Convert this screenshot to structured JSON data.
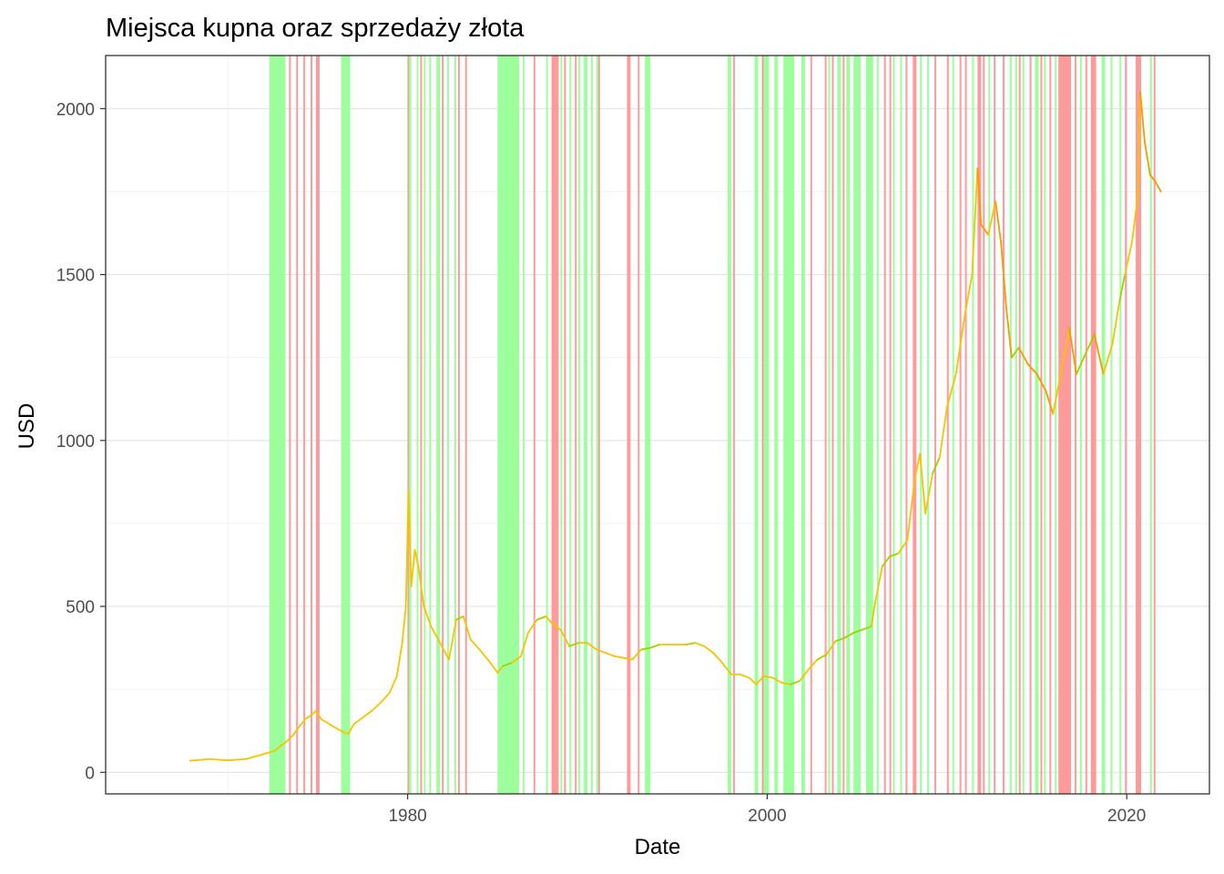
{
  "chart_data": {
    "type": "line",
    "title": "Miejsca kupna oraz sprzedaży złota",
    "xlabel": "Date",
    "ylabel": "USD",
    "x_ticks": [
      "1980",
      "2000",
      "2020"
    ],
    "y_ticks": [
      "0",
      "500",
      "1000",
      "1500",
      "2000"
    ],
    "xlim": [
      1963.2,
      2024.6
    ],
    "ylim": [
      -65,
      2160
    ],
    "grid": true,
    "colors": {
      "price_low": "#f5c400",
      "price_high": "#f59a00",
      "price_trend_up": "#9ad400",
      "buy_band": "#9cff9c",
      "sell_band": "#ff9a9a"
    },
    "series": [
      {
        "x": [
          1967.9,
          1969.0,
          1970.0,
          1971.0,
          1972.0,
          1972.6,
          1973.2,
          1973.6,
          1974.0,
          1974.3,
          1974.7,
          1974.9,
          1975.2,
          1975.8,
          1976.3,
          1976.7,
          1977.0,
          1977.5,
          1978.0,
          1978.5,
          1979.0,
          1979.4,
          1979.7,
          1979.9,
          1980.05,
          1980.2,
          1980.4,
          1980.6,
          1980.9,
          1981.3,
          1981.7,
          1982.3,
          1982.7,
          1983.1,
          1983.5,
          1984.0,
          1984.6,
          1985.0,
          1985.3,
          1985.8,
          1986.3,
          1986.7,
          1987.2,
          1987.7,
          1988.0,
          1988.5,
          1989.0,
          1989.5,
          1990.0,
          1990.5,
          1991.0,
          1991.5,
          1992.0,
          1992.5,
          1993.0,
          1993.5,
          1994.0,
          1994.5,
          1995.0,
          1995.5,
          1996.0,
          1996.5,
          1997.0,
          1997.5,
          1998.0,
          1998.5,
          1999.0,
          1999.4,
          1999.8,
          2000.3,
          2000.8,
          2001.3,
          2001.8,
          2002.3,
          2002.8,
          2003.3,
          2003.8,
          2004.3,
          2004.8,
          2005.3,
          2005.8,
          2006.0,
          2006.4,
          2006.8,
          2007.3,
          2007.8,
          2008.2,
          2008.5,
          2008.8,
          2009.2,
          2009.6,
          2010.0,
          2010.5,
          2011.0,
          2011.4,
          2011.7,
          2011.9,
          2012.3,
          2012.7,
          2013.0,
          2013.3,
          2013.6,
          2014.0,
          2014.5,
          2015.0,
          2015.5,
          2015.9,
          2016.5,
          2016.8,
          2017.2,
          2017.7,
          2018.2,
          2018.7,
          2019.2,
          2019.6,
          2019.9,
          2020.3,
          2020.6,
          2020.75,
          2021.0,
          2021.3,
          2021.6,
          2021.9
        ],
        "y": [
          35,
          40,
          36,
          40,
          55,
          65,
          90,
          110,
          140,
          160,
          175,
          185,
          160,
          140,
          125,
          115,
          145,
          165,
          185,
          210,
          240,
          290,
          390,
          500,
          850,
          560,
          670,
          620,
          500,
          440,
          400,
          340,
          460,
          470,
          400,
          370,
          330,
          300,
          320,
          330,
          350,
          420,
          460,
          470,
          450,
          430,
          380,
          390,
          390,
          370,
          360,
          350,
          345,
          340,
          370,
          375,
          385,
          385,
          385,
          385,
          390,
          380,
          360,
          330,
          295,
          295,
          285,
          265,
          290,
          285,
          270,
          265,
          275,
          310,
          340,
          355,
          395,
          405,
          420,
          430,
          440,
          510,
          620,
          650,
          660,
          700,
          880,
          960,
          780,
          900,
          950,
          1100,
          1200,
          1380,
          1500,
          1820,
          1650,
          1620,
          1720,
          1600,
          1400,
          1250,
          1280,
          1230,
          1200,
          1150,
          1080,
          1250,
          1340,
          1200,
          1260,
          1320,
          1200,
          1290,
          1420,
          1500,
          1600,
          1730,
          2050,
          1900,
          1800,
          1780,
          1750
        ]
      }
    ],
    "buy_periods": [
      [
        1972.3,
        1973.2
      ],
      [
        1976.3,
        1976.8
      ],
      [
        1980.0,
        1980.2
      ],
      [
        1980.5,
        1980.6
      ],
      [
        1980.9,
        1981.0
      ],
      [
        1981.2,
        1981.3
      ],
      [
        1981.6,
        1981.8
      ],
      [
        1982.2,
        1982.3
      ],
      [
        1982.6,
        1982.7
      ],
      [
        1985.0,
        1986.2
      ],
      [
        1986.4,
        1986.5
      ],
      [
        1987.7,
        1987.8
      ],
      [
        1988.5,
        1988.6
      ],
      [
        1989.0,
        1989.1
      ],
      [
        1989.5,
        1989.6
      ],
      [
        1989.8,
        1990.0
      ],
      [
        1990.2,
        1990.3
      ],
      [
        1990.5,
        1990.6
      ],
      [
        1993.2,
        1993.5
      ],
      [
        1997.8,
        1998.0
      ],
      [
        1999.3,
        1999.5
      ],
      [
        1999.8,
        2000.1
      ],
      [
        2000.4,
        2000.6
      ],
      [
        2000.9,
        2001.5
      ],
      [
        2001.9,
        2002.1
      ],
      [
        2003.4,
        2003.5
      ],
      [
        2003.9,
        2004.1
      ],
      [
        2004.4,
        2004.6
      ],
      [
        2004.8,
        2005.2
      ],
      [
        2005.5,
        2005.9
      ],
      [
        2006.1,
        2006.2
      ],
      [
        2007.0,
        2007.1
      ],
      [
        2007.4,
        2007.5
      ],
      [
        2008.5,
        2008.6
      ],
      [
        2008.9,
        2009.0
      ],
      [
        2010.3,
        2010.4
      ],
      [
        2011.4,
        2011.5
      ],
      [
        2012.3,
        2012.4
      ],
      [
        2013.5,
        2013.6
      ],
      [
        2013.8,
        2013.9
      ],
      [
        2014.2,
        2014.3
      ],
      [
        2014.9,
        2015.1
      ],
      [
        2015.4,
        2015.5
      ],
      [
        2016.0,
        2016.1
      ],
      [
        2016.4,
        2016.5
      ],
      [
        2017.4,
        2017.5
      ],
      [
        2018.6,
        2018.8
      ],
      [
        2019.1,
        2019.2
      ],
      [
        2019.6,
        2019.7
      ],
      [
        2021.3,
        2021.4
      ]
    ],
    "sell_periods": [
      [
        1973.4,
        1973.5
      ],
      [
        1973.8,
        1973.9
      ],
      [
        1974.2,
        1974.3
      ],
      [
        1974.6,
        1974.7
      ],
      [
        1974.9,
        1975.1
      ],
      [
        1980.0,
        1980.05
      ],
      [
        1980.7,
        1980.8
      ],
      [
        1981.9,
        1982.0
      ],
      [
        1982.8,
        1982.9
      ],
      [
        1983.2,
        1983.3
      ],
      [
        1987.0,
        1987.1
      ],
      [
        1988.0,
        1988.4
      ],
      [
        1988.7,
        1988.8
      ],
      [
        1989.3,
        1989.4
      ],
      [
        1990.6,
        1990.7
      ],
      [
        1992.2,
        1992.4
      ],
      [
        1992.8,
        1992.9
      ],
      [
        1998.1,
        1998.2
      ],
      [
        1999.7,
        1999.8
      ],
      [
        2002.4,
        2002.5
      ],
      [
        2003.2,
        2003.3
      ],
      [
        2003.6,
        2003.7
      ],
      [
        2004.2,
        2004.3
      ],
      [
        2006.5,
        2006.6
      ],
      [
        2006.8,
        2006.9
      ],
      [
        2007.7,
        2007.8
      ],
      [
        2008.1,
        2008.3
      ],
      [
        2009.3,
        2009.4
      ],
      [
        2010.0,
        2010.1
      ],
      [
        2010.7,
        2010.8
      ],
      [
        2011.0,
        2011.1
      ],
      [
        2011.7,
        2011.9
      ],
      [
        2012.0,
        2012.1
      ],
      [
        2012.6,
        2012.7
      ],
      [
        2013.1,
        2013.2
      ],
      [
        2014.0,
        2014.1
      ],
      [
        2014.6,
        2014.7
      ],
      [
        2015.2,
        2015.3
      ],
      [
        2015.7,
        2015.8
      ],
      [
        2016.2,
        2016.9
      ],
      [
        2017.1,
        2017.2
      ],
      [
        2017.7,
        2017.8
      ],
      [
        2018.0,
        2018.3
      ],
      [
        2019.9,
        2020.0
      ],
      [
        2020.5,
        2020.8
      ],
      [
        2021.5,
        2021.6
      ]
    ]
  }
}
